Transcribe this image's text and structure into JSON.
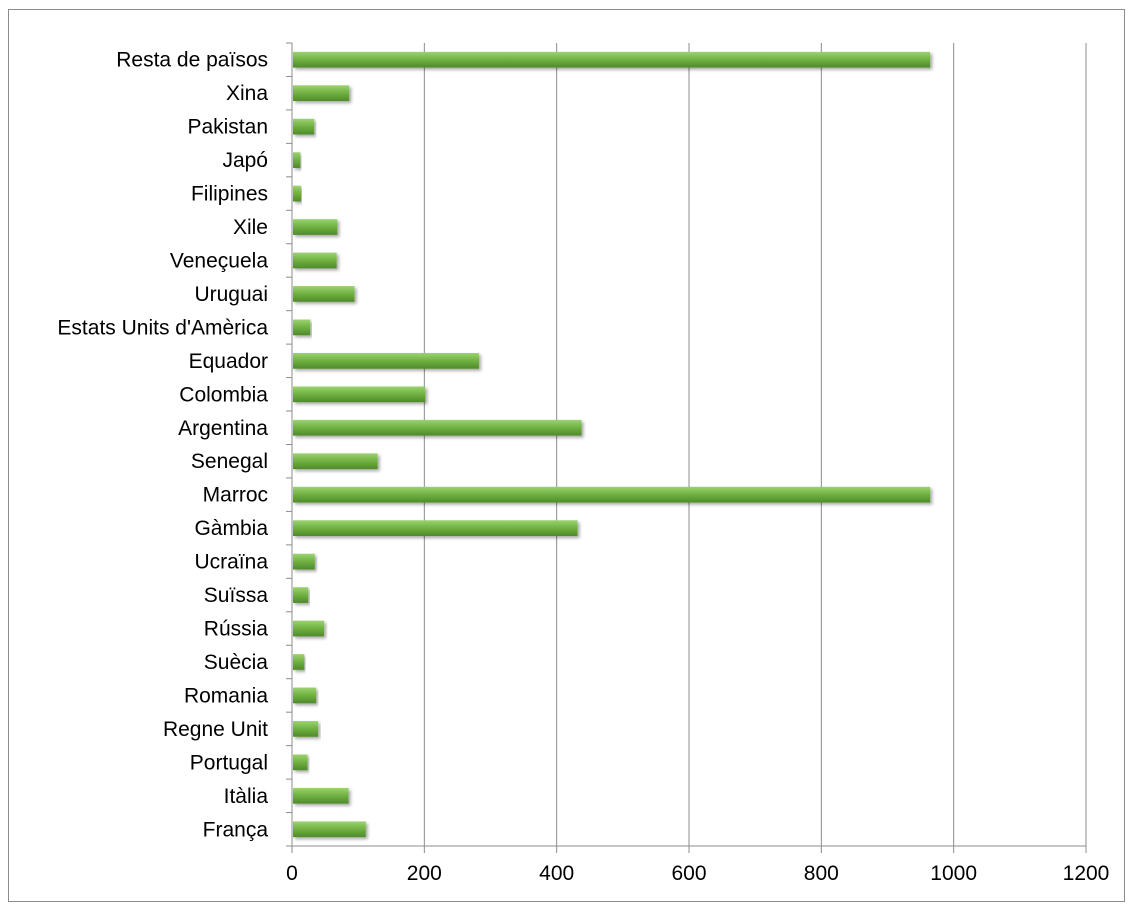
{
  "chart_data": {
    "type": "bar",
    "orientation": "horizontal",
    "categories": [
      "França",
      "Itàlia",
      "Portugal",
      "Regne Unit",
      "Romania",
      "Suècia",
      "Rússia",
      "Suïssa",
      "Ucraïna",
      "Gàmbia",
      "Marroc",
      "Senegal",
      "Argentina",
      "Colombia",
      "Equador",
      "Estats Units d'Amèrica",
      "Uruguai",
      "Veneçuela",
      "Xile",
      "Filipines",
      "Japó",
      "Pakistan",
      "Xina",
      "Resta de països"
    ],
    "values": [
      110,
      84,
      22,
      38,
      35,
      17,
      47,
      23,
      33,
      430,
      963,
      128,
      436,
      200,
      281,
      26,
      93,
      66,
      67,
      12,
      11,
      32,
      85,
      963
    ],
    "title": "",
    "xlabel": "",
    "ylabel": "",
    "xlim": [
      0,
      1200
    ],
    "xticks": [
      "0",
      "200",
      "400",
      "600",
      "800",
      "1000",
      "1200"
    ],
    "grid": "vertical",
    "legend": "none",
    "bar_color": "#73b444",
    "bar_highlight": "#9cd272",
    "bar_shade": "#4f8a2a",
    "grid_color": "#8c8c8c",
    "axis_color": "#8c8c8c"
  }
}
